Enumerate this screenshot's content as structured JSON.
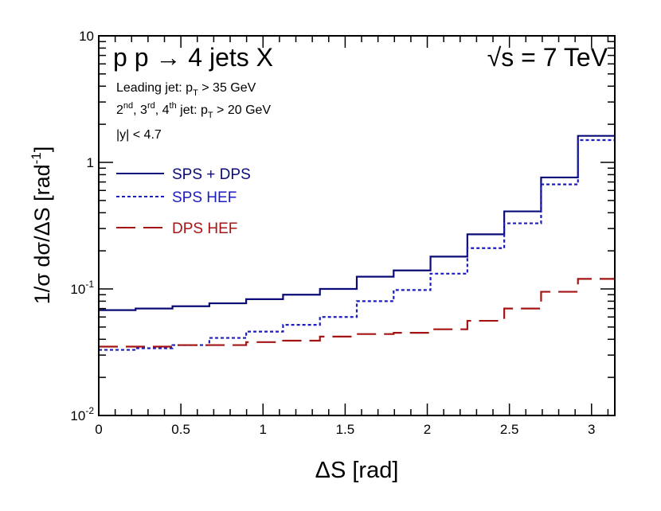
{
  "chart_data": {
    "type": "line",
    "title": "p p → 4 jets X",
    "energy_label": "√s = 7 TeV",
    "cuts": {
      "line1": {
        "prefix": "Leading jet: p",
        "sub": "T",
        "suffix": " > 35 GeV"
      },
      "line2": {
        "n1": "2",
        "s1": "nd",
        "n2": ", 3",
        "s2": "rd",
        "n3": ", 4",
        "s3": "th",
        "mid": " jet: p",
        "sub": "T",
        "suffix": " > 20 GeV"
      },
      "line3": "|y| < 4.7"
    },
    "xlabel": "ΔS   [rad]",
    "ylabel": {
      "main": "1/σ  dσ/ΔS   [rad",
      "sup": "-1",
      "close": "]"
    },
    "xlim": [
      0,
      3.14159
    ],
    "ylim": [
      0.01,
      10
    ],
    "yscale": "log",
    "x_ticks": [
      0,
      0.5,
      1,
      1.5,
      2,
      2.5,
      3
    ],
    "x_tick_labels": [
      "0",
      "0.5",
      "1",
      "1.5",
      "2",
      "2.5",
      "3"
    ],
    "y_ticks": [
      {
        "value": 10,
        "base": "10",
        "exp": ""
      },
      {
        "value": 1,
        "base": "1",
        "exp": ""
      },
      {
        "value": 0.1,
        "base": "10",
        "exp": "-1"
      },
      {
        "value": 0.01,
        "base": "10",
        "exp": "-2"
      }
    ],
    "bin_edges": [
      0,
      0.2244,
      0.4488,
      0.6732,
      0.8976,
      1.122,
      1.3464,
      1.5708,
      1.7952,
      2.0196,
      2.244,
      2.4684,
      2.6928,
      2.9172,
      3.1416
    ],
    "series": [
      {
        "name": "SPS + DPS",
        "color": "#0a0a78",
        "dash": "solid",
        "values": [
          0.068,
          0.07,
          0.073,
          0.077,
          0.083,
          0.09,
          0.1,
          0.125,
          0.14,
          0.18,
          0.27,
          0.41,
          0.76,
          1.62
        ]
      },
      {
        "name": "SPS HEF",
        "color": "#1c1cc0",
        "dash": "dotted",
        "values": [
          0.033,
          0.034,
          0.036,
          0.041,
          0.046,
          0.052,
          0.06,
          0.08,
          0.098,
          0.132,
          0.21,
          0.33,
          0.67,
          1.5
        ]
      },
      {
        "name": "DPS HEF",
        "color": "#a41414",
        "dash": "dashed",
        "values": [
          0.035,
          0.035,
          0.036,
          0.036,
          0.038,
          0.039,
          0.042,
          0.044,
          0.045,
          0.048,
          0.056,
          0.07,
          0.095,
          0.12
        ]
      }
    ],
    "legend_position": "top-left"
  }
}
